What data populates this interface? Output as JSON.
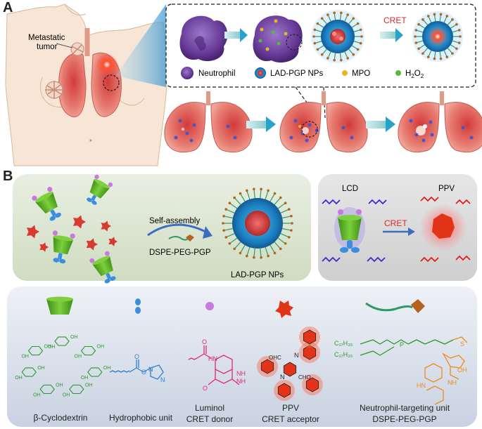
{
  "panelA": {
    "letter": "A",
    "metastatic_label_line1": "Metastatic",
    "metastatic_label_line2": "tumor",
    "cret_label": "CRET",
    "legend": {
      "neutrophil": "Neutrophil",
      "nps": "LAD-PGP NPs",
      "mpo": "MPO",
      "h2o2_main": "H",
      "h2o2_sub1": "2",
      "h2o2_mid": "O",
      "h2o2_sub2": "2"
    }
  },
  "panelB": {
    "letter": "B",
    "self_assembly": "Self-assembly",
    "dspe_label": "DSPE-PEG-PGP",
    "nps_label": "LAD-PGP NPs",
    "lcd_label": "LCD",
    "ppv_label": "PPV",
    "cret_label": "CRET"
  },
  "components": {
    "beta_cd": "β-Cyclodextrin",
    "hydrophobic": "Hydrophobic unit",
    "luminol_1": "Luminol",
    "luminol_2": "CRET donor",
    "ppv_1": "PPV",
    "ppv_2": "CRET acceptor",
    "neutro_1": "Neutrophil-targeting unit",
    "neutro_2": "DSPE-PEG-PGP"
  },
  "chem_labels": {
    "oh": "OH",
    "o": "O",
    "n": "N",
    "hn": "HN",
    "nh": "NH",
    "cho": "CHO",
    "ohc": "OHC",
    "c17": "C₁₇H₃₅",
    "p": "P",
    "s": "S",
    "nh2": "NH"
  },
  "colors": {
    "cd_green": "#4caa1e",
    "imidazole_blue": "#2f7fd0",
    "luminol_pink": "#e0287a",
    "ppv_red": "#e23418",
    "peg_orange": "#f08a1c",
    "cret_red": "#d8262a",
    "neutrophil_purple": "#6a3c9a",
    "panel_b_green_bg": "#dfe8d6",
    "panel_b_gray_bg": "#d7d7d7",
    "panel_b_blue_bg": "#dde3ee"
  }
}
